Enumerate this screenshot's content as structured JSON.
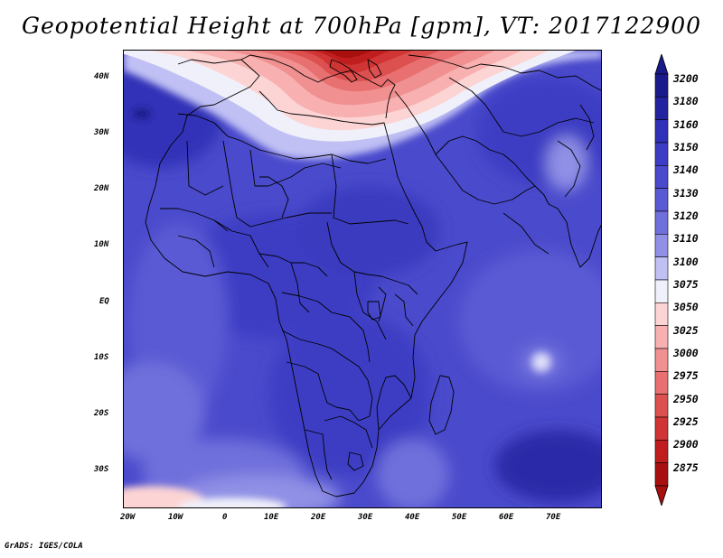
{
  "title": "Geopotential Height at 700hPa [gpm], VT: 2017122900",
  "credit": "GrADS: IGES/COLA",
  "map": {
    "type": "shaded-contour",
    "variable": "Geopotential Height",
    "level": "700hPa",
    "units": "gpm",
    "valid_time": "2017122900",
    "lon_range": [
      -22,
      80
    ],
    "lat_range": [
      -37,
      45
    ],
    "lat_ticks": [
      "40N",
      "30N",
      "20N",
      "10N",
      "EQ",
      "10S",
      "20S",
      "30S"
    ],
    "lon_ticks": [
      "20W",
      "10W",
      "0",
      "10E",
      "20E",
      "30E",
      "40E",
      "50E",
      "60E",
      "70E"
    ]
  },
  "colorbar": {
    "levels": [
      "3200",
      "3180",
      "3160",
      "3150",
      "3140",
      "3130",
      "3120",
      "3110",
      "3100",
      "3075",
      "3050",
      "3025",
      "3000",
      "2975",
      "2950",
      "2925",
      "2900",
      "2875"
    ],
    "colors": [
      "#1a1a8a",
      "#2323a0",
      "#3030b8",
      "#3c3cc4",
      "#4a4acc",
      "#5a5ad4",
      "#7070dc",
      "#9090e6",
      "#c0c0f4",
      "#f0f0fa",
      "#fcd4d4",
      "#f8b0b0",
      "#f09090",
      "#e87070",
      "#dc5050",
      "#d03434",
      "#c01e1e",
      "#a81010"
    ]
  }
}
